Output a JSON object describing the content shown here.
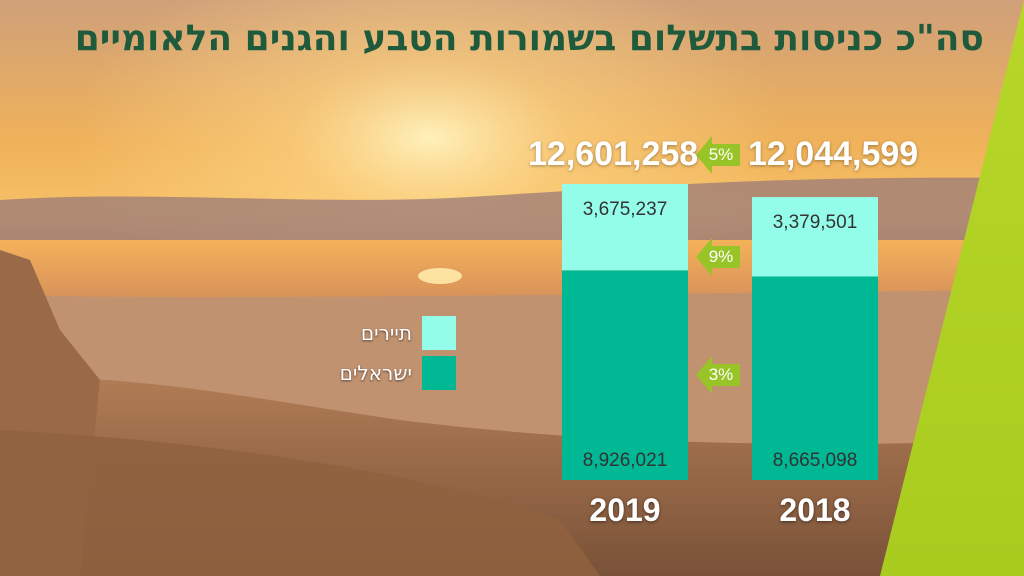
{
  "title": "סה\"כ כניסות בתשלום בשמורות הטבע והגנים הלאומיים",
  "colors": {
    "tourists": "#94fde9",
    "israelis": "#00b893",
    "arrow": "#98c428",
    "accent": "#b7d629",
    "title": "#1f5a3c"
  },
  "legend": [
    {
      "label": "תיירים",
      "series": "tourists"
    },
    {
      "label": "ישראלים",
      "series": "israelis"
    }
  ],
  "chart_data": {
    "type": "bar",
    "stacked": true,
    "categories": [
      "2018",
      "2019"
    ],
    "series": [
      {
        "name": "ישראלים",
        "key": "israelis",
        "values": [
          8665098,
          8926021
        ]
      },
      {
        "name": "תיירים",
        "key": "tourists",
        "values": [
          3379501,
          3675237
        ]
      }
    ],
    "totals": [
      "12,044,599",
      "12,601,258"
    ],
    "value_labels": {
      "israelis": [
        "8,665,098",
        "8,926,021"
      ],
      "tourists": [
        "3,379,501",
        "3,675,237"
      ]
    },
    "changes": {
      "total": "5%",
      "tourists": "9%",
      "israelis": "3%"
    },
    "legend_position": "left"
  }
}
